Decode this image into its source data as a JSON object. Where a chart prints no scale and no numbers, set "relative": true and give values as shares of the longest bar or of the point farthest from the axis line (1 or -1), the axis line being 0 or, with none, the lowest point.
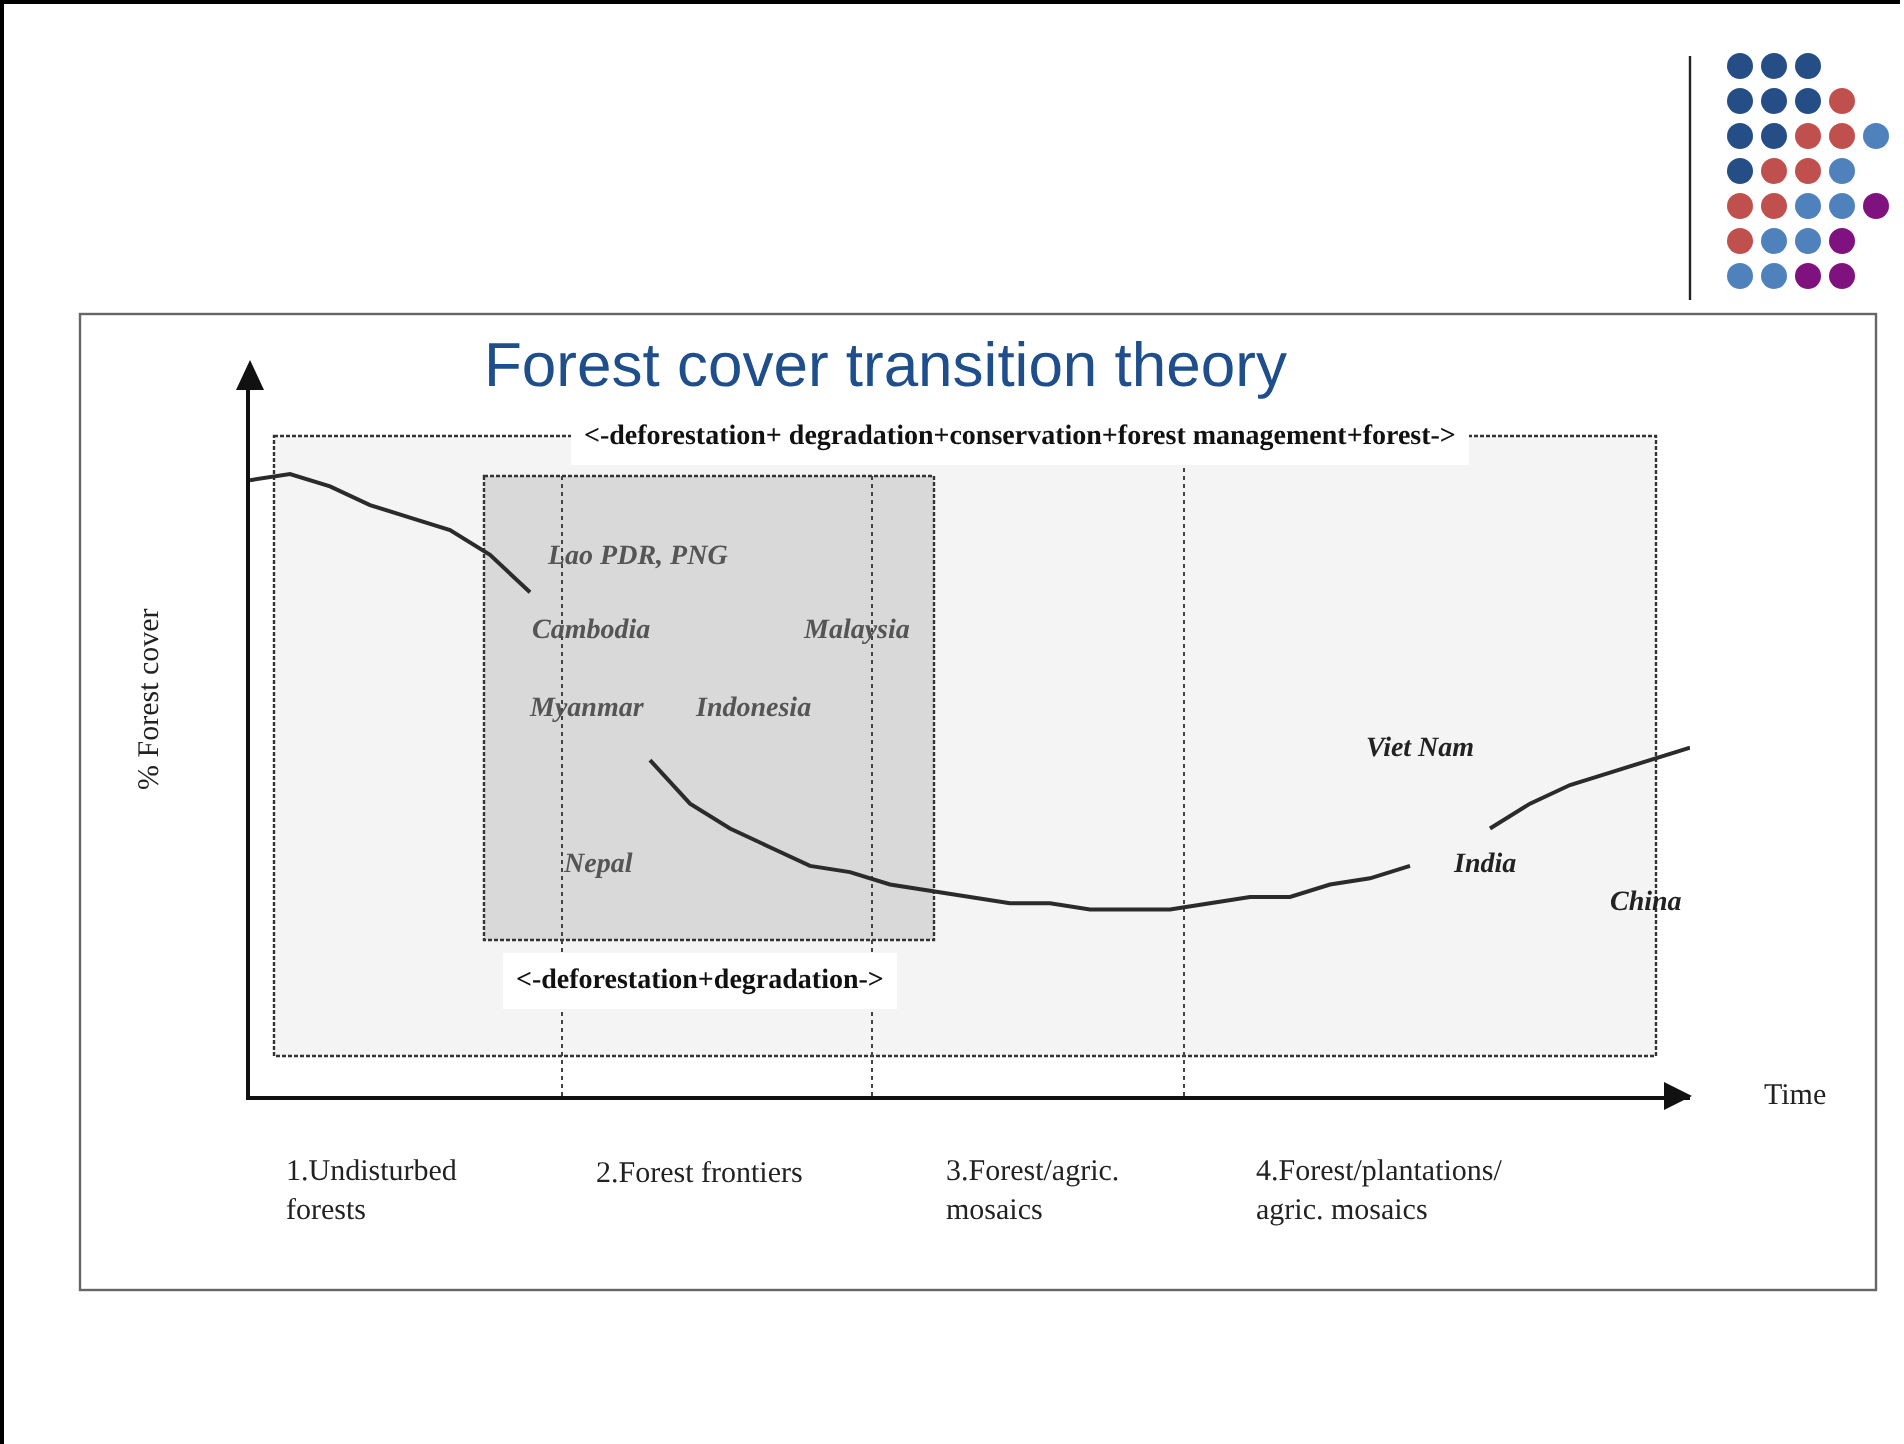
{
  "chart_data": {
    "type": "line",
    "title": "Forest cover transition theory",
    "xlabel": "Time",
    "ylabel": "% Forest cover",
    "relative": true,
    "legend": false,
    "marker": "none",
    "line_style": "solid",
    "categories": [
      null,
      null,
      null,
      null,
      null,
      null,
      null,
      null,
      null,
      null,
      null,
      null,
      null,
      null,
      null,
      null,
      null,
      null,
      null,
      null,
      null,
      null,
      null,
      null,
      null,
      null,
      null,
      null,
      null,
      null,
      null,
      null,
      null,
      null,
      null,
      null,
      null
    ],
    "series": [
      {
        "color": "#2b2b2b",
        "values": [
          0.99,
          1.0,
          0.98,
          0.95,
          0.93,
          0.91,
          0.87,
          0.81,
          null,
          null,
          null,
          null,
          null,
          null,
          null,
          null,
          null,
          null,
          null,
          null,
          null,
          null,
          null,
          null,
          null,
          null,
          null,
          null,
          null,
          null,
          null,
          null,
          null,
          null,
          null,
          null,
          null
        ]
      },
      {
        "color": "#2b2b2b",
        "values": [
          null,
          null,
          null,
          null,
          null,
          null,
          null,
          null,
          null,
          null,
          0.54,
          0.47,
          0.43,
          0.4,
          0.37,
          0.36,
          0.34,
          0.33,
          0.32,
          0.31,
          0.31,
          0.3,
          0.3,
          0.3,
          0.31,
          0.32,
          0.32,
          0.34,
          0.35,
          0.37,
          null,
          null,
          null,
          null,
          null,
          null,
          null
        ]
      },
      {
        "color": "#2b2b2b",
        "values": [
          null,
          null,
          null,
          null,
          null,
          null,
          null,
          null,
          null,
          null,
          null,
          null,
          null,
          null,
          null,
          null,
          null,
          null,
          null,
          null,
          null,
          null,
          null,
          null,
          null,
          null,
          null,
          null,
          null,
          null,
          null,
          0.43,
          0.47,
          0.5,
          0.52,
          0.54,
          0.56
        ]
      }
    ],
    "annotations": [
      "<-deforestation+ degradation+conservation+forest management+forest->",
      "<-deforestation+degradation->",
      "Lao PDR, PNG",
      "Cambodia",
      "Malaysia",
      "Myanmar",
      "Indonesia",
      "Nepal",
      "Viet Nam",
      "India",
      "China",
      "1.Undisturbed\nforests",
      "2.Forest frontiers",
      "3.Forest/agric.\nmosaics",
      "4.Forest/plantations/\nagric. mosaics"
    ]
  }
}
